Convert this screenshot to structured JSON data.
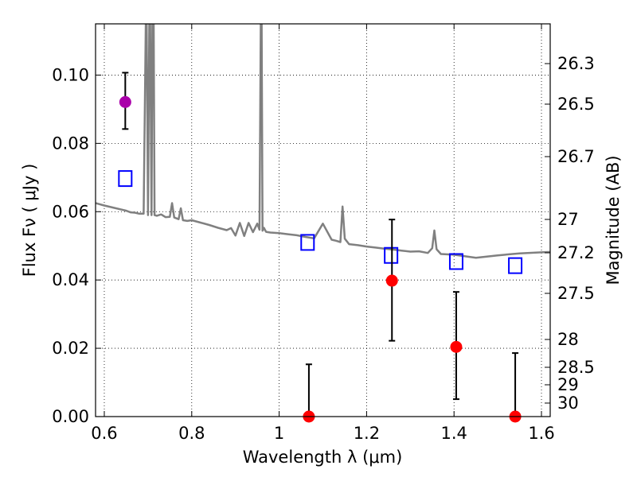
{
  "chart_data": {
    "type": "scatter",
    "xlabel": "Wavelength  λ (μm)",
    "ylabel": "Flux  Fν  ( μJy )",
    "ylabel_right": "Magnitude (AB)",
    "xlim": [
      0.58,
      1.62
    ],
    "ylim": [
      0.0,
      0.115
    ],
    "grid": true,
    "x_ticks": [
      0.6,
      0.8,
      1.0,
      1.2,
      1.4,
      1.6
    ],
    "x_tick_labels": [
      "0.6",
      "0.8",
      "1",
      "1.2",
      "1.4",
      "1.6"
    ],
    "y_ticks": [
      0.0,
      0.02,
      0.04,
      0.06,
      0.08,
      0.1
    ],
    "y_tick_labels": [
      "0.00",
      "0.02",
      "0.04",
      "0.06",
      "0.08",
      "0.10"
    ],
    "mag_ticks": [
      "26.3",
      "26.5",
      "26.7",
      "27",
      "27.2",
      "27.5",
      "28",
      "28.5",
      "29",
      "30"
    ],
    "mag_tick_labels": [
      "26.3",
      "26.5",
      "26.7",
      "27",
      "27.2",
      "27.5",
      "28",
      "28.5",
      "29",
      "30"
    ],
    "series": [
      {
        "marker": "line",
        "color": "#808080",
        "x": [
          0.58,
          0.6,
          0.62,
          0.64,
          0.65,
          0.66,
          0.67,
          0.68,
          0.69,
          0.695,
          0.697,
          0.7,
          0.703,
          0.705,
          0.708,
          0.71,
          0.713,
          0.715,
          0.72,
          0.73,
          0.74,
          0.75,
          0.755,
          0.76,
          0.77,
          0.775,
          0.78,
          0.79,
          0.8,
          0.82,
          0.84,
          0.86,
          0.88,
          0.89,
          0.9,
          0.91,
          0.92,
          0.93,
          0.94,
          0.95,
          0.955,
          0.958,
          0.96,
          0.962,
          0.965,
          0.97,
          0.98,
          1.0,
          1.02,
          1.04,
          1.06,
          1.08,
          1.1,
          1.12,
          1.13,
          1.14,
          1.145,
          1.15,
          1.16,
          1.18,
          1.2,
          1.22,
          1.24,
          1.26,
          1.28,
          1.3,
          1.32,
          1.34,
          1.35,
          1.355,
          1.36,
          1.37,
          1.4,
          1.45,
          1.5,
          1.55,
          1.6,
          1.62
        ],
        "y": [
          0.0625,
          0.0618,
          0.0612,
          0.0606,
          0.0603,
          0.0598,
          0.0597,
          0.0594,
          0.0594,
          0.115,
          0.115,
          0.059,
          0.115,
          0.115,
          0.059,
          0.115,
          0.115,
          0.059,
          0.0588,
          0.0592,
          0.0584,
          0.0585,
          0.0625,
          0.0583,
          0.0578,
          0.061,
          0.0575,
          0.0573,
          0.0575,
          0.0568,
          0.0561,
          0.0553,
          0.0546,
          0.0552,
          0.053,
          0.0567,
          0.0529,
          0.0567,
          0.054,
          0.0565,
          0.0547,
          0.115,
          0.115,
          0.0544,
          0.0553,
          0.0541,
          0.0539,
          0.0537,
          0.0534,
          0.0531,
          0.0526,
          0.0522,
          0.0565,
          0.0518,
          0.0515,
          0.0511,
          0.0615,
          0.0521,
          0.0505,
          0.0502,
          0.0498,
          0.0495,
          0.0492,
          0.0489,
          0.0486,
          0.0483,
          0.0484,
          0.0479,
          0.0493,
          0.0545,
          0.049,
          0.0476,
          0.0474,
          0.0465,
          0.0472,
          0.0478,
          0.0481,
          0.0482
        ]
      },
      {
        "marker": "open-square",
        "color": "#0000ff",
        "x": [
          0.648,
          1.065,
          1.256,
          1.405,
          1.54
        ],
        "y": [
          0.0697,
          0.051,
          0.0472,
          0.0454,
          0.0442
        ]
      },
      {
        "marker": "filled-circle",
        "color": "#ff0000",
        "x": [
          1.068,
          1.258,
          1.405,
          1.54
        ],
        "y": [
          0.0,
          0.0398,
          0.0204,
          0.0
        ],
        "yerr_low": [
          0.0,
          0.0222,
          0.0051,
          0.0
        ],
        "yerr_high": [
          0.0153,
          0.0577,
          0.0365,
          0.0186
        ]
      },
      {
        "marker": "filled-circle",
        "color": "#aa00aa",
        "x": [
          0.648
        ],
        "y": [
          0.0921
        ],
        "yerr_low": [
          0.0842
        ],
        "yerr_high": [
          0.1007
        ]
      }
    ]
  }
}
